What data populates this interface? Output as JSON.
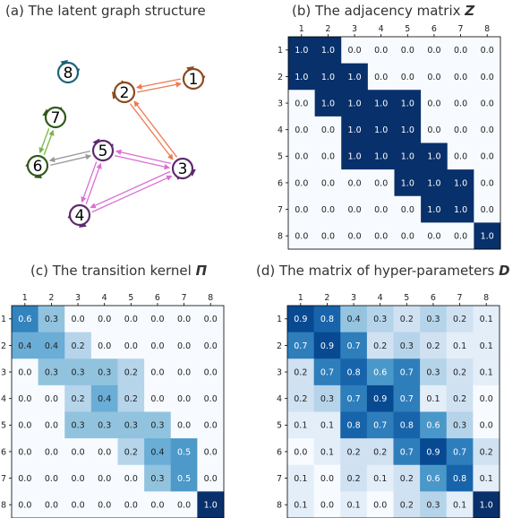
{
  "panels": {
    "a": {
      "title": "(a) The latent graph structure"
    },
    "b": {
      "title_prefix": "(b) The adjacency matrix ",
      "symbol": "Z"
    },
    "c": {
      "title_prefix": "(c) The transition kernel ",
      "symbol": "Π"
    },
    "d": {
      "title_prefix": "(d) The matrix of hyper-parameters ",
      "symbol": "D"
    }
  },
  "tick_labels": [
    "1",
    "2",
    "3",
    "4",
    "5",
    "6",
    "7",
    "8"
  ],
  "graph": {
    "nodes": [
      {
        "id": "1",
        "color": "#8B4A1E"
      },
      {
        "id": "2",
        "color": "#8B4A1E"
      },
      {
        "id": "3",
        "color": "#5E2A6E"
      },
      {
        "id": "4",
        "color": "#5E2A6E"
      },
      {
        "id": "5",
        "color": "#5E2A6E"
      },
      {
        "id": "6",
        "color": "#2F5A18"
      },
      {
        "id": "7",
        "color": "#2F5A18"
      },
      {
        "id": "8",
        "color": "#1C6377"
      }
    ],
    "edges": [
      {
        "from": "1",
        "to": "2",
        "color": "#EE7A52"
      },
      {
        "from": "2",
        "to": "3",
        "color": "#EE7A52"
      },
      {
        "from": "5",
        "to": "3",
        "color": "#DB6ED3"
      },
      {
        "from": "3",
        "to": "4",
        "color": "#DB6ED3"
      },
      {
        "from": "4",
        "to": "5",
        "color": "#DB6ED3"
      },
      {
        "from": "6",
        "to": "7",
        "color": "#7AB648"
      },
      {
        "from": "6",
        "to": "5",
        "color": "#999999"
      }
    ]
  },
  "matrices": {
    "Z": [
      [
        "1.0",
        "1.0",
        "0.0",
        "0.0",
        "0.0",
        "0.0",
        "0.0",
        "0.0"
      ],
      [
        "1.0",
        "1.0",
        "1.0",
        "0.0",
        "0.0",
        "0.0",
        "0.0",
        "0.0"
      ],
      [
        "0.0",
        "1.0",
        "1.0",
        "1.0",
        "1.0",
        "0.0",
        "0.0",
        "0.0"
      ],
      [
        "0.0",
        "0.0",
        "1.0",
        "1.0",
        "1.0",
        "0.0",
        "0.0",
        "0.0"
      ],
      [
        "0.0",
        "0.0",
        "1.0",
        "1.0",
        "1.0",
        "1.0",
        "0.0",
        "0.0"
      ],
      [
        "0.0",
        "0.0",
        "0.0",
        "0.0",
        "1.0",
        "1.0",
        "1.0",
        "0.0"
      ],
      [
        "0.0",
        "0.0",
        "0.0",
        "0.0",
        "0.0",
        "1.0",
        "1.0",
        "0.0"
      ],
      [
        "0.0",
        "0.0",
        "0.0",
        "0.0",
        "0.0",
        "0.0",
        "0.0",
        "1.0"
      ]
    ],
    "Pi": [
      [
        "0.6",
        "0.3",
        "0.0",
        "0.0",
        "0.0",
        "0.0",
        "0.0",
        "0.0"
      ],
      [
        "0.4",
        "0.4",
        "0.2",
        "0.0",
        "0.0",
        "0.0",
        "0.0",
        "0.0"
      ],
      [
        "0.0",
        "0.3",
        "0.3",
        "0.3",
        "0.2",
        "0.0",
        "0.0",
        "0.0"
      ],
      [
        "0.0",
        "0.0",
        "0.2",
        "0.4",
        "0.2",
        "0.0",
        "0.0",
        "0.0"
      ],
      [
        "0.0",
        "0.0",
        "0.3",
        "0.3",
        "0.3",
        "0.3",
        "0.0",
        "0.0"
      ],
      [
        "0.0",
        "0.0",
        "0.0",
        "0.0",
        "0.2",
        "0.4",
        "0.5",
        "0.0"
      ],
      [
        "0.0",
        "0.0",
        "0.0",
        "0.0",
        "0.0",
        "0.3",
        "0.5",
        "0.0"
      ],
      [
        "0.0",
        "0.0",
        "0.0",
        "0.0",
        "0.0",
        "0.0",
        "0.0",
        "1.0"
      ]
    ],
    "D": [
      [
        "0.9",
        "0.8",
        "0.4",
        "0.3",
        "0.2",
        "0.3",
        "0.2",
        "0.1"
      ],
      [
        "0.7",
        "0.9",
        "0.7",
        "0.2",
        "0.3",
        "0.2",
        "0.1",
        "0.1"
      ],
      [
        "0.2",
        "0.7",
        "0.8",
        "0.6",
        "0.7",
        "0.3",
        "0.2",
        "0.1"
      ],
      [
        "0.2",
        "0.3",
        "0.7",
        "0.9",
        "0.7",
        "0.1",
        "0.2",
        "0.0"
      ],
      [
        "0.1",
        "0.1",
        "0.8",
        "0.7",
        "0.8",
        "0.6",
        "0.3",
        "0.0"
      ],
      [
        "0.0",
        "0.1",
        "0.2",
        "0.2",
        "0.7",
        "0.9",
        "0.7",
        "0.2"
      ],
      [
        "0.1",
        "0.0",
        "0.2",
        "0.1",
        "0.2",
        "0.6",
        "0.8",
        "0.1"
      ],
      [
        "0.1",
        "0.0",
        "0.1",
        "0.0",
        "0.2",
        "0.3",
        "0.1",
        "1.0"
      ]
    ]
  },
  "colormap": {
    "name": "Blues",
    "light": "#F7FBFF",
    "dark": "#08306B"
  }
}
